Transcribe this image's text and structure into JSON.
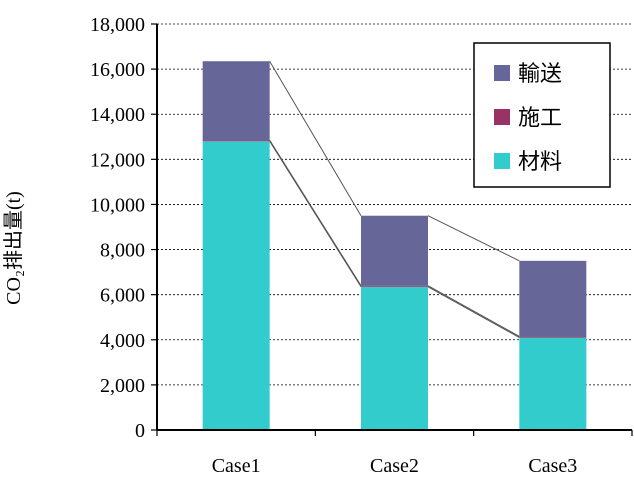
{
  "chart_data": {
    "type": "bar",
    "stacked": true,
    "categories": [
      "Case1",
      "Case2",
      "Case3"
    ],
    "series": [
      {
        "name": "材料",
        "color": "#33CCCC",
        "values": [
          12800,
          6350,
          4100
        ]
      },
      {
        "name": "施工",
        "color": "#993366",
        "values": [
          50,
          50,
          50
        ]
      },
      {
        "name": "輸送",
        "color": "#666699",
        "values": [
          3500,
          3100,
          3350
        ]
      }
    ],
    "ylabel": "CO₂排出量(t)",
    "ylim": [
      0,
      18000
    ],
    "yticks": [
      "0",
      "2,000",
      "4,000",
      "6,000",
      "8,000",
      "10,000",
      "12,000",
      "14,000",
      "16,000",
      "18,000"
    ],
    "grid": true,
    "grid_style": "dashed",
    "legend": {
      "position": "top-right",
      "order": [
        "輸送",
        "施工",
        "材料"
      ]
    },
    "series_lines": true
  }
}
